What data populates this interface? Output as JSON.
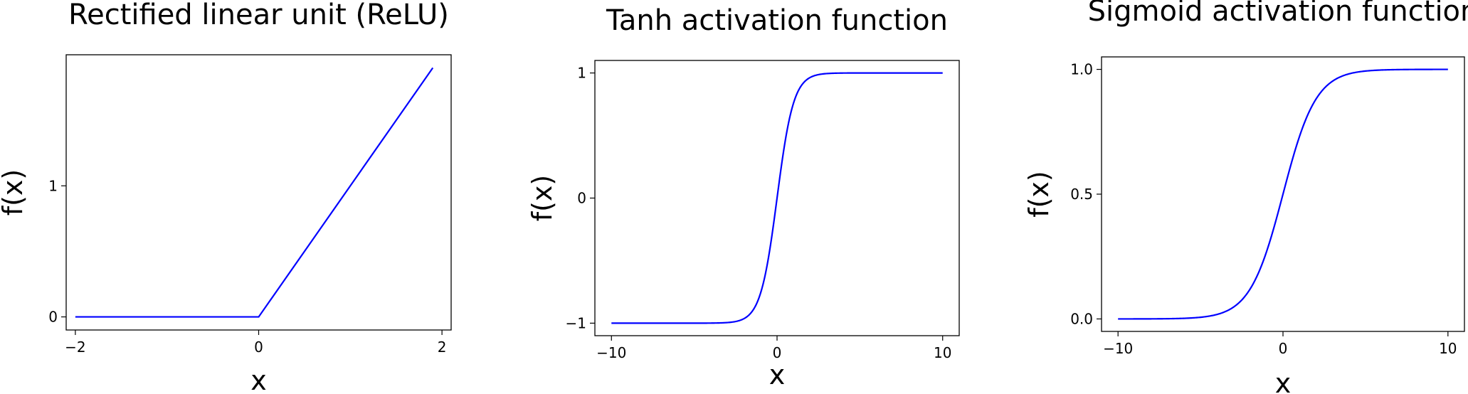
{
  "chart_data": [
    {
      "type": "line",
      "title": "Rectified linear unit (ReLU)",
      "xlabel": "x",
      "ylabel": "f(x)",
      "xlim": [
        -2.1,
        2.1
      ],
      "ylim": [
        -0.1,
        2.0
      ],
      "xticks": [
        -2,
        0,
        2
      ],
      "yticks": [
        0,
        1
      ],
      "xtick_labels": [
        "−2",
        "0",
        "2"
      ],
      "ytick_labels": [
        "0",
        "1"
      ],
      "grid": false,
      "series": [
        {
          "color": "#0000ff",
          "x": [
            -2.0,
            0.0,
            1.9
          ],
          "y": [
            0.0,
            0.0,
            1.9
          ]
        }
      ]
    },
    {
      "type": "line",
      "title": "Tanh activation function",
      "xlabel": "x",
      "ylabel": "f(x)",
      "xlim": [
        -11,
        11
      ],
      "ylim": [
        -1.1,
        1.1
      ],
      "xticks": [
        -10,
        0,
        10
      ],
      "yticks": [
        -1,
        0,
        1
      ],
      "xtick_labels": [
        "−10",
        "0",
        "10"
      ],
      "ytick_labels": [
        "−1",
        "0",
        "1"
      ],
      "grid": false,
      "series": [
        {
          "color": "#0000ff",
          "function": "tanh",
          "x_range": [
            -10,
            10
          ]
        }
      ]
    },
    {
      "type": "line",
      "title": "Sigmoid activation function",
      "xlabel": "x",
      "ylabel": "f(x)",
      "xlim": [
        -11,
        11
      ],
      "ylim": [
        -0.05,
        1.05
      ],
      "xticks": [
        -10,
        0,
        10
      ],
      "yticks": [
        0.0,
        0.5,
        1.0
      ],
      "xtick_labels": [
        "−10",
        "0",
        "10"
      ],
      "ytick_labels": [
        "0.0",
        "0.5",
        "1.0"
      ],
      "grid": false,
      "series": [
        {
          "color": "#0000ff",
          "function": "sigmoid",
          "x_range": [
            -10,
            10
          ]
        }
      ]
    }
  ]
}
